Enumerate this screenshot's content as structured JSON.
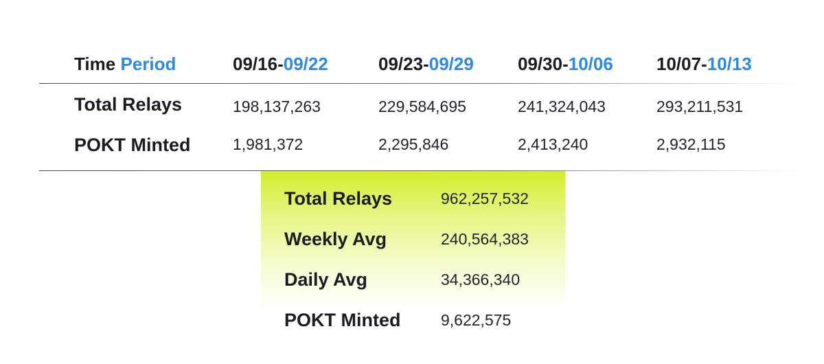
{
  "table": {
    "header_label": {
      "main": "Time ",
      "accent": "Period"
    },
    "periods": [
      {
        "start": "09/16-",
        "end": "09/22"
      },
      {
        "start": "09/23-",
        "end": "09/29"
      },
      {
        "start": "09/30-",
        "end": "10/06"
      },
      {
        "start": "10/07-",
        "end": "10/13"
      }
    ],
    "rows": [
      {
        "label": "Total Relays",
        "values": [
          "198,137,263",
          "229,584,695",
          "241,324,043",
          "293,211,531"
        ]
      },
      {
        "label": "POKT Minted",
        "values": [
          "1,981,372",
          "2,295,846",
          "2,413,240",
          "2,932,115"
        ]
      }
    ]
  },
  "summary": [
    {
      "label": "Total Relays",
      "value": "962,257,532"
    },
    {
      "label": "Weekly Avg",
      "value": "240,564,383"
    },
    {
      "label": "Daily Avg",
      "value": "34,366,340"
    },
    {
      "label": "POKT Minted",
      "value": "9,622,575"
    }
  ],
  "colors": {
    "accent": "#2c8ae2",
    "highlight": "#d2ee2a",
    "text": "#1a1c22"
  }
}
